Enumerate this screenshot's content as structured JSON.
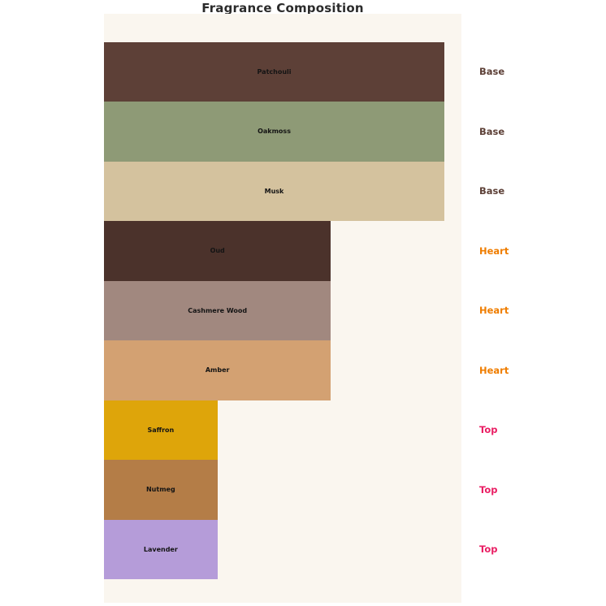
{
  "chart_data": {
    "type": "bar",
    "orientation": "horizontal",
    "title": "Fragrance Composition",
    "categories": [
      "Patchouli",
      "Oakmoss",
      "Musk",
      "Oud",
      "Cashmere Wood",
      "Amber",
      "Saffron",
      "Nutmeg",
      "Lavender"
    ],
    "values": [
      3,
      3,
      3,
      2,
      2,
      2,
      1,
      1,
      1
    ],
    "groups": [
      "Base",
      "Base",
      "Base",
      "Heart",
      "Heart",
      "Heart",
      "Top",
      "Top",
      "Top"
    ],
    "bar_colors": [
      "#5d4037",
      "#8e9a76",
      "#d4c29e",
      "#4b322b",
      "#a1887f",
      "#d3a172",
      "#dea50a",
      "#b47d47",
      "#b59cd9"
    ],
    "group_colors": {
      "Base": "#5d4037",
      "Heart": "#ef7d00",
      "Top": "#e91e63"
    },
    "xlim": [
      0,
      3.15
    ],
    "grid": false,
    "legend": "none",
    "axis_ticks": "none",
    "plot_background": "#faf6ef",
    "figure_background": "#ffffff",
    "bar_label_color": "#141414",
    "title_color": "#2b2b2b"
  }
}
